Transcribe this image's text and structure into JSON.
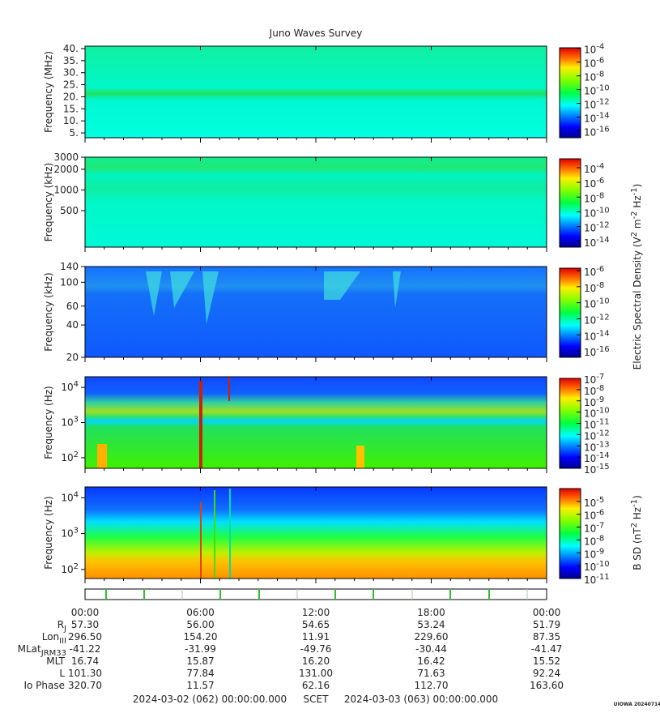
{
  "chart_data": [
    {
      "type": "spectrogram",
      "title": "Juno Waves Survey",
      "ylabel": [
        "Frequency (MHz)"
      ],
      "yscale": "linear",
      "ylim": [
        3,
        41
      ],
      "yticks": [
        {
          "value": 5,
          "label": "5."
        },
        {
          "value": 10,
          "label": "10."
        },
        {
          "value": 15,
          "label": "15."
        },
        {
          "value": 20,
          "label": "20."
        },
        {
          "value": 25,
          "label": "25."
        },
        {
          "value": 30,
          "label": "30."
        },
        {
          "value": 35,
          "label": "35."
        },
        {
          "value": 40,
          "label": "40."
        }
      ],
      "clim": [
        1e-17,
        0.00012
      ],
      "cticks": [
        {
          "value": 0.0001,
          "label": [
            "10",
            "-4"
          ]
        },
        {
          "value": 1e-06,
          "label": [
            "10",
            "-6"
          ]
        },
        {
          "value": 1e-08,
          "label": [
            "10",
            "-8"
          ]
        },
        {
          "value": 1e-10,
          "label": [
            "10",
            "-10"
          ]
        },
        {
          "value": 1e-12,
          "label": [
            "10",
            "-12"
          ]
        },
        {
          "value": 1e-14,
          "label": [
            "10",
            "-14"
          ]
        },
        {
          "value": 1e-16,
          "label": [
            "10",
            "-16"
          ]
        }
      ]
    },
    {
      "type": "spectrogram",
      "ylabel": [
        "Frequency (kHz)"
      ],
      "yscale": "log",
      "ylim": [
        147,
        3000
      ],
      "yticks": [
        500,
        1000,
        2000,
        3000
      ],
      "clim": [
        1.6e-15,
        0.0016
      ],
      "cticks": [
        {
          "value": 0.0001,
          "label": [
            "10",
            "-4"
          ]
        },
        {
          "value": 1e-06,
          "label": [
            "10",
            "-6"
          ]
        },
        {
          "value": 1e-08,
          "label": [
            "10",
            "-8"
          ]
        },
        {
          "value": 1e-10,
          "label": [
            "10",
            "-10"
          ]
        },
        {
          "value": 1e-12,
          "label": [
            "10",
            "-12"
          ]
        },
        {
          "value": 1e-14,
          "label": [
            "10",
            "-14"
          ]
        }
      ]
    },
    {
      "type": "spectrogram",
      "ylabel": [
        "Frequency (kHz)"
      ],
      "yscale": "log",
      "ylim": [
        20,
        140
      ],
      "yticks": [
        20,
        40,
        60,
        100,
        140
      ],
      "clim": [
        1.6e-17,
        2e-06
      ],
      "cticks": [
        {
          "value": 1e-06,
          "label": [
            "10",
            "-6"
          ]
        },
        {
          "value": 1e-08,
          "label": [
            "10",
            "-8"
          ]
        },
        {
          "value": 1e-10,
          "label": [
            "10",
            "-10"
          ]
        },
        {
          "value": 1e-12,
          "label": [
            "10",
            "-12"
          ]
        },
        {
          "value": 1e-14,
          "label": [
            "10",
            "-14"
          ]
        },
        {
          "value": 1e-16,
          "label": [
            "10",
            "-16"
          ]
        }
      ],
      "clabel": [
        "Electric Spectral Density (V",
        "2",
        " m",
        "-2",
        " Hz",
        "-1",
        ")"
      ]
    },
    {
      "type": "spectrogram",
      "ylabel": [
        "Frequency (Hz)"
      ],
      "yscale": "log",
      "ylim": [
        50,
        20000
      ],
      "yticks": [
        {
          "value": 100,
          "label": [
            "10",
            "2"
          ]
        },
        {
          "value": 1000,
          "label": [
            "10",
            "3"
          ]
        },
        {
          "value": 10000,
          "label": [
            "10",
            "4"
          ]
        }
      ],
      "clim": [
        1e-15,
        1e-07
      ],
      "cticks": [
        {
          "value": 1e-07,
          "label": [
            "10",
            "-7"
          ]
        },
        {
          "value": 1e-08,
          "label": [
            "10",
            "-8"
          ]
        },
        {
          "value": 1e-09,
          "label": [
            "10",
            "-9"
          ]
        },
        {
          "value": 1e-10,
          "label": [
            "10",
            "-10"
          ]
        },
        {
          "value": 1e-11,
          "label": [
            "10",
            "-11"
          ]
        },
        {
          "value": 1e-12,
          "label": [
            "10",
            "-12"
          ]
        },
        {
          "value": 1e-13,
          "label": [
            "10",
            "-13"
          ]
        },
        {
          "value": 1e-14,
          "label": [
            "10",
            "-14"
          ]
        },
        {
          "value": 1e-15,
          "label": [
            "10",
            "-15"
          ]
        }
      ]
    },
    {
      "type": "spectrogram",
      "ylabel": [
        "Frequency (Hz)"
      ],
      "yscale": "log",
      "ylim": [
        56,
        20000
      ],
      "yticks": [
        {
          "value": 100,
          "label": [
            "10",
            "2"
          ]
        },
        {
          "value": 1000,
          "label": [
            "10",
            "3"
          ]
        },
        {
          "value": 10000,
          "label": [
            "10",
            "4"
          ]
        }
      ],
      "clim": [
        1e-11,
        0.0001
      ],
      "cticks": [
        {
          "value": 1e-05,
          "label": [
            "10",
            "-5"
          ]
        },
        {
          "value": 1e-06,
          "label": [
            "10",
            "-6"
          ]
        },
        {
          "value": 1e-07,
          "label": [
            "10",
            "-7"
          ]
        },
        {
          "value": 1e-08,
          "label": [
            "10",
            "-8"
          ]
        },
        {
          "value": 1e-09,
          "label": [
            "10",
            "-9"
          ]
        },
        {
          "value": 1e-10,
          "label": [
            "10",
            "-10"
          ]
        },
        {
          "value": 1e-11,
          "label": [
            "10",
            "-11"
          ]
        }
      ],
      "clabel": [
        "B SD (nT",
        "2",
        " Hz",
        "-1",
        ")"
      ]
    }
  ],
  "time_axis": {
    "xlim": [
      0,
      24
    ],
    "xticks": [
      {
        "value": 0,
        "label": "00:00"
      },
      {
        "value": 6,
        "label": "06:00"
      },
      {
        "value": 12,
        "label": "12:00"
      },
      {
        "value": 18,
        "label": "18:00"
      },
      {
        "value": 24,
        "label": "00:00"
      }
    ]
  },
  "ephemeris": [
    {
      "label": [
        "R",
        "J"
      ],
      "values": [
        "57.30",
        "56.00",
        "54.65",
        "53.24",
        "51.79"
      ]
    },
    {
      "label": [
        "Lon",
        "III"
      ],
      "values": [
        "296.50",
        "154.20",
        "11.91",
        "229.60",
        "87.35"
      ]
    },
    {
      "label": [
        "MLat",
        "JRM33"
      ],
      "values": [
        "-41.22",
        "-31.99",
        "-49.76",
        "-30.44",
        "-41.47"
      ]
    },
    {
      "label": [
        "MLT"
      ],
      "values": [
        "16.74",
        "15.87",
        "16.20",
        "16.42",
        "15.52"
      ]
    },
    {
      "label": [
        "L"
      ],
      "values": [
        "101.30",
        "77.84",
        "131.00",
        "71.63",
        "92.24"
      ]
    },
    {
      "label": [
        "Io Phase"
      ],
      "values": [
        "320.70",
        "11.57",
        "62.16",
        "112.70",
        "163.60"
      ]
    }
  ],
  "footer": {
    "start": "2024-03-02 (062) 00:00:00.000",
    "scet": "SCET",
    "end": "2024-03-03 (063) 00:00:00.000",
    "stamp": "UIOWA 20240714"
  }
}
